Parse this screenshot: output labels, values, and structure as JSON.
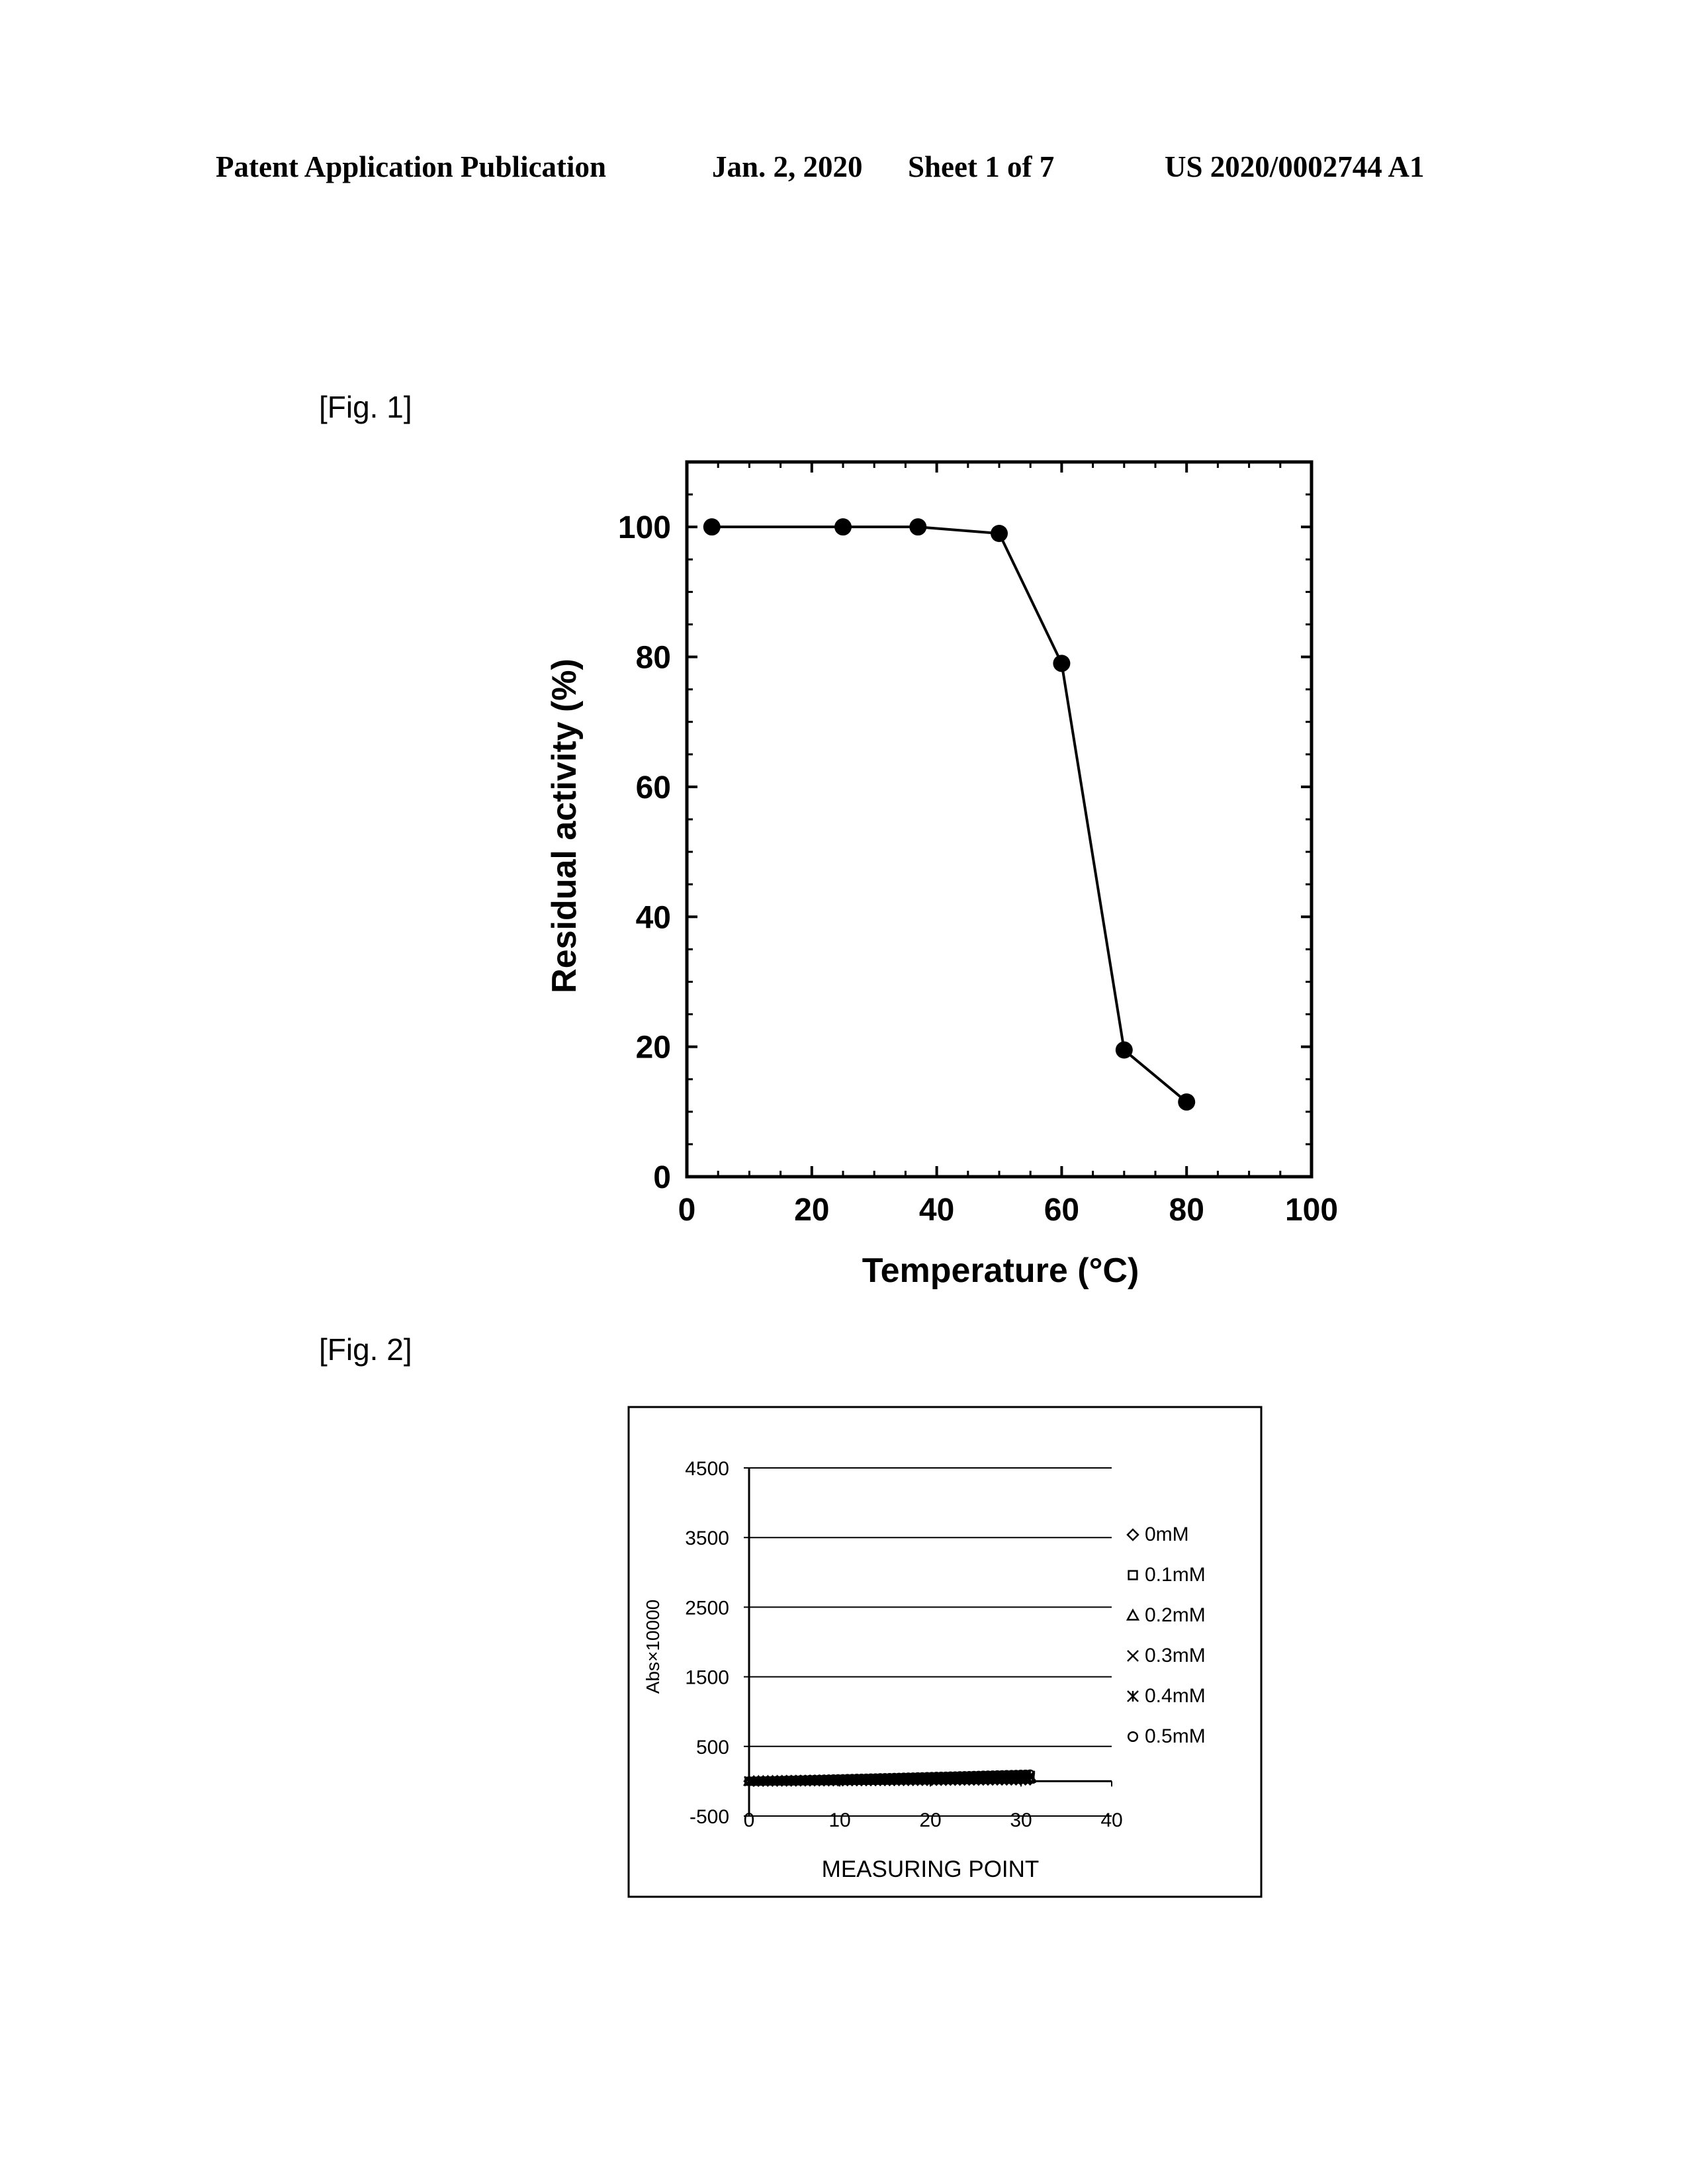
{
  "header": {
    "publication": "Patent Application Publication",
    "date": "Jan. 2, 2020",
    "sheet": "Sheet 1 of 7",
    "number": "US 2020/0002744 A1"
  },
  "figures": {
    "fig1_label": "[Fig. 1]",
    "fig2_label": "[Fig. 2]"
  },
  "chart_data": [
    {
      "type": "line",
      "title": "",
      "xlabel": "Temperature (°C)",
      "ylabel": "Residual activity (%)",
      "xlim": [
        0,
        100
      ],
      "ylim": [
        0,
        110
      ],
      "xticks": [
        0,
        20,
        40,
        60,
        80,
        100
      ],
      "yticks": [
        0,
        20,
        40,
        60,
        80,
        100
      ],
      "grid": false,
      "series": [
        {
          "x": [
            4,
            25,
            37,
            50,
            60,
            70,
            80
          ],
          "y": [
            100,
            100,
            100,
            99,
            79,
            19.5,
            11.5
          ]
        }
      ],
      "color": "#000000"
    },
    {
      "type": "scatter",
      "title": "",
      "xlabel": "MEASURING POINT",
      "ylabel": "Abs×10000",
      "xlim": [
        0,
        40
      ],
      "ylim": [
        -500,
        4500
      ],
      "xticks": [
        0,
        10,
        20,
        30,
        40
      ],
      "yticks": [
        -500,
        500,
        1500,
        2500,
        3500,
        4500
      ],
      "grid": "horizontal",
      "legend": "right",
      "x_range": [
        0,
        31
      ],
      "series": [
        {
          "name": "0mM",
          "marker": "diamond",
          "y_start": 0,
          "y_end": 20
        },
        {
          "name": "0.1mM",
          "marker": "square",
          "y_start": 0,
          "y_end": 30
        },
        {
          "name": "0.2mM",
          "marker": "triangle",
          "y_start": 0,
          "y_end": 40
        },
        {
          "name": "0.3mM",
          "marker": "x",
          "y_start": 0,
          "y_end": 60
        },
        {
          "name": "0.4mM",
          "marker": "star",
          "y_start": 0,
          "y_end": 80
        },
        {
          "name": "0.5mM",
          "marker": "circle",
          "y_start": 0,
          "y_end": 100
        }
      ]
    }
  ]
}
